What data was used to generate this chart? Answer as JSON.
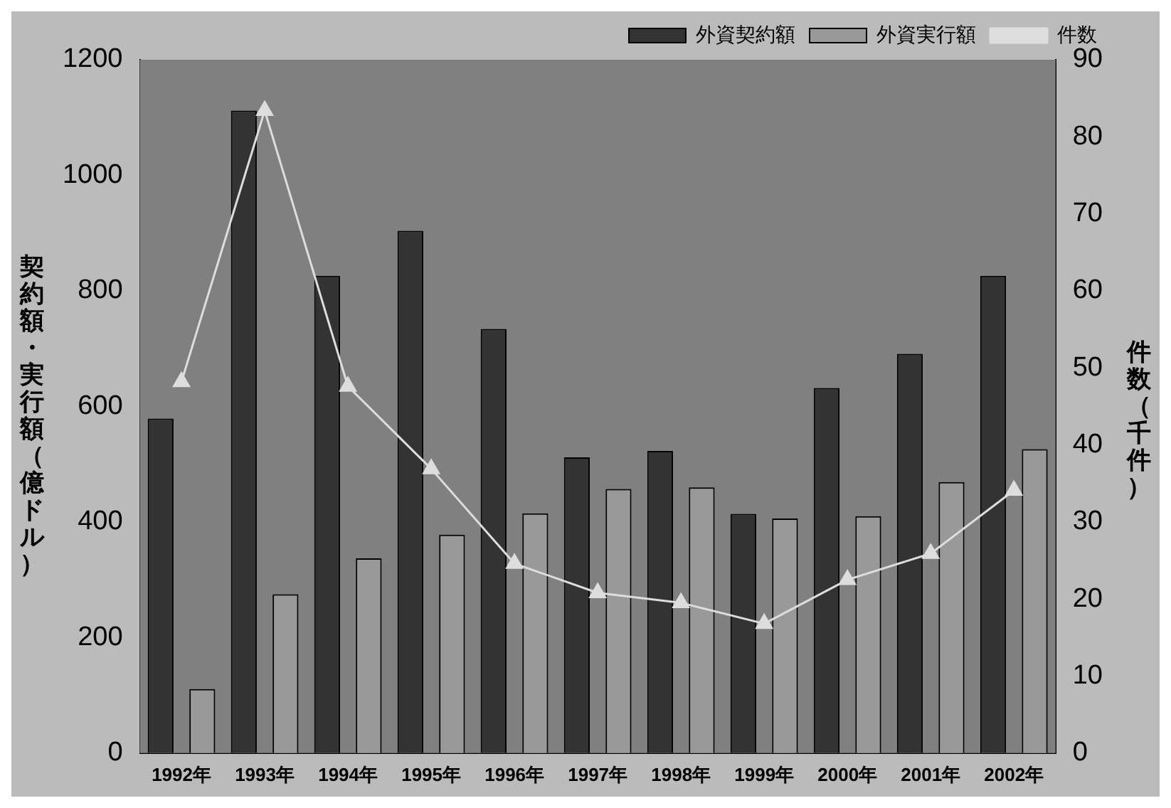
{
  "chart_data": {
    "type": "bar",
    "categories": [
      "1992年",
      "1993年",
      "1994年",
      "1995年",
      "1996年",
      "1997年",
      "1998年",
      "1999年",
      "2000年",
      "2001年",
      "2002年"
    ],
    "series": [
      {
        "name": "外資契約額",
        "color": "#333333",
        "values": [
          579,
          1112,
          826,
          904,
          734,
          512,
          523,
          414,
          632,
          691,
          826
        ]
      },
      {
        "name": "外資実行額",
        "color": "#999999",
        "values": [
          111,
          275,
          337,
          378,
          415,
          457,
          460,
          406,
          410,
          469,
          526
        ]
      },
      {
        "name": "件数",
        "type": "line",
        "axis": "y2",
        "color": "#dddddd",
        "values": [
          48.2,
          83.4,
          47.6,
          36.9,
          24.6,
          20.8,
          19.5,
          16.8,
          22.5,
          25.9,
          34.1
        ]
      }
    ],
    "ylabel": "契約額・実行額（億ドル）",
    "y2label": "件数（千件）",
    "ylim": [
      0,
      1200
    ],
    "yticks": [
      0,
      200,
      400,
      600,
      800,
      1000,
      1200
    ],
    "y2lim": [
      0,
      90
    ],
    "y2ticks": [
      0,
      10,
      20,
      30,
      40,
      50,
      60,
      70,
      80,
      90
    ],
    "grid": false,
    "legend": "top right",
    "marker": "triangle",
    "line_style": "solid"
  }
}
